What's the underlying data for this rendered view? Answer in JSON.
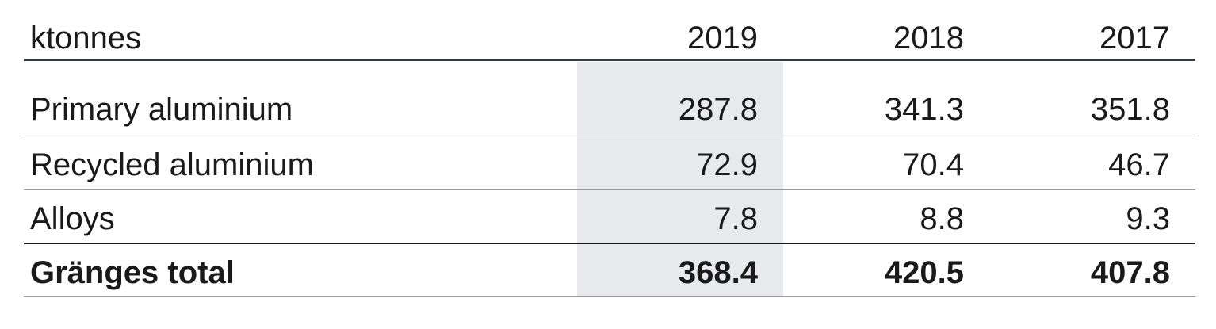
{
  "table": {
    "unit_label": "ktonnes",
    "years": [
      "2019",
      "2018",
      "2017"
    ],
    "rows": [
      {
        "label": "Primary aluminium",
        "values": [
          "287.8",
          "341.3",
          "351.8"
        ]
      },
      {
        "label": "Recycled aluminium",
        "values": [
          "72.9",
          "70.4",
          "46.7"
        ]
      },
      {
        "label": "Alloys",
        "values": [
          "7.8",
          "8.8",
          "9.3"
        ]
      }
    ],
    "total": {
      "label": "Gränges total",
      "values": [
        "368.4",
        "420.5",
        "407.8"
      ]
    }
  },
  "colors": {
    "highlight_column": "#e8e9ec",
    "header_rule": "#333a45",
    "row_rule": "#9a9a9a",
    "text": "#1a1a1a"
  }
}
